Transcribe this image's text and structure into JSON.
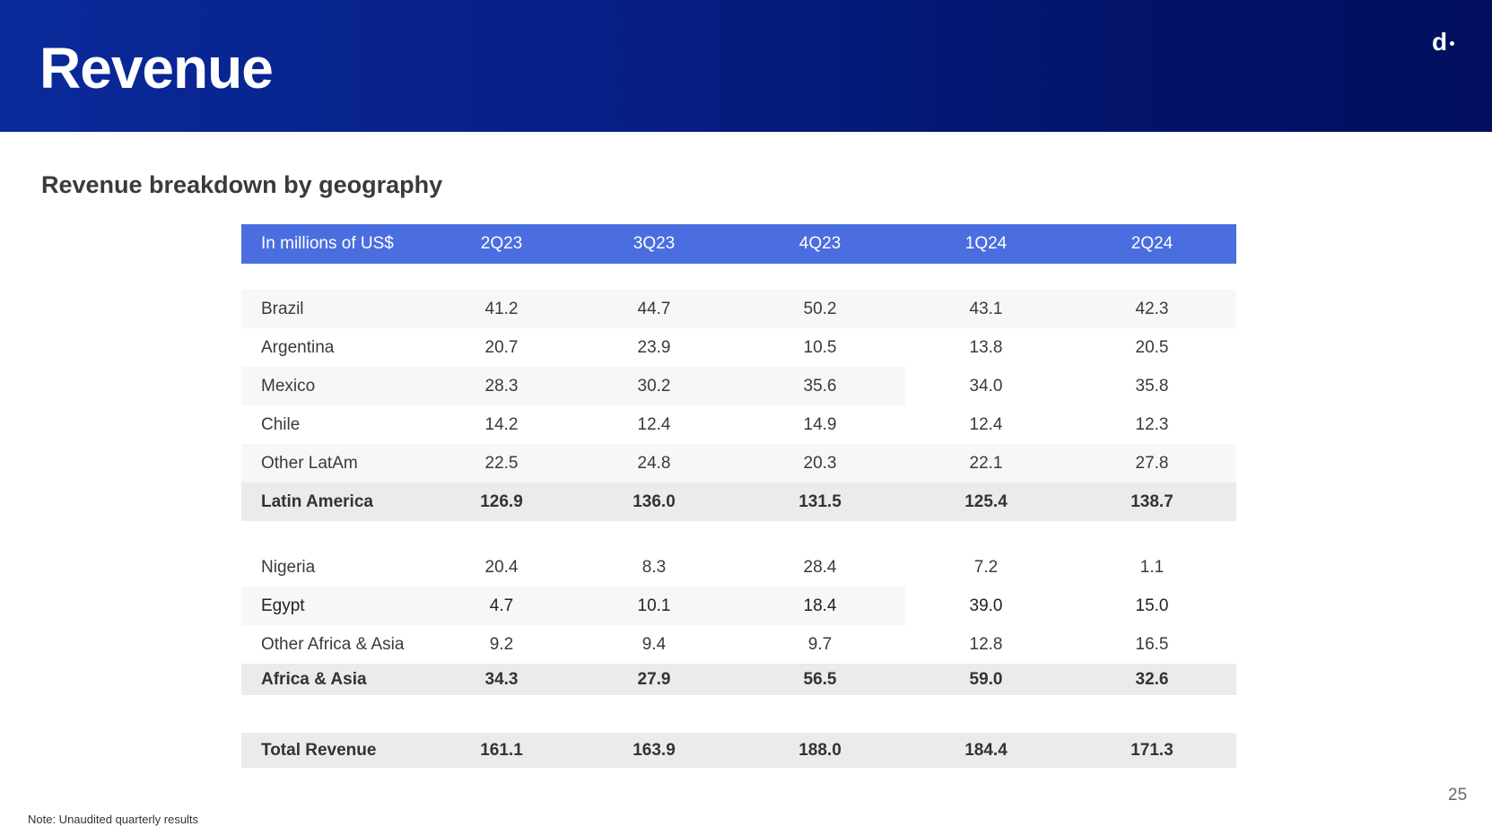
{
  "slide": {
    "title": "Revenue",
    "logo_text": "d",
    "subtitle": "Revenue breakdown by geography",
    "page_number": "25",
    "note": "Note: Unaudited quarterly results"
  },
  "table": {
    "header": [
      "In millions of US$",
      "2Q23",
      "3Q23",
      "4Q23",
      "1Q24",
      "2Q24"
    ],
    "rows": [
      [
        "Brazil",
        "41.2",
        "44.7",
        "50.2",
        "43.1",
        "42.3"
      ],
      [
        "Argentina",
        "20.7",
        "23.9",
        "10.5",
        "13.8",
        "20.5"
      ],
      [
        "Mexico",
        "28.3",
        "30.2",
        "35.6",
        "34.0",
        "35.8"
      ],
      [
        "Chile",
        "14.2",
        "12.4",
        "14.9",
        "12.4",
        "12.3"
      ],
      [
        "Other LatAm",
        "22.5",
        "24.8",
        "20.3",
        "22.1",
        "27.8"
      ],
      [
        "Latin America",
        "126.9",
        "136.0",
        "131.5",
        "125.4",
        "138.7"
      ],
      [
        "Nigeria",
        "20.4",
        "8.3",
        "28.4",
        "7.2",
        "1.1"
      ],
      [
        "Egypt",
        "4.7",
        "10.1",
        "18.4",
        "39.0",
        "15.0"
      ],
      [
        "Other Africa & Asia",
        "9.2",
        "9.4",
        "9.7",
        "12.8",
        "16.5"
      ],
      [
        "Africa & Asia",
        "34.3",
        "27.9",
        "56.5",
        "59.0",
        "32.6"
      ],
      [
        "Total Revenue",
        "161.1",
        "163.9",
        "188.0",
        "184.4",
        "171.3"
      ]
    ]
  }
}
